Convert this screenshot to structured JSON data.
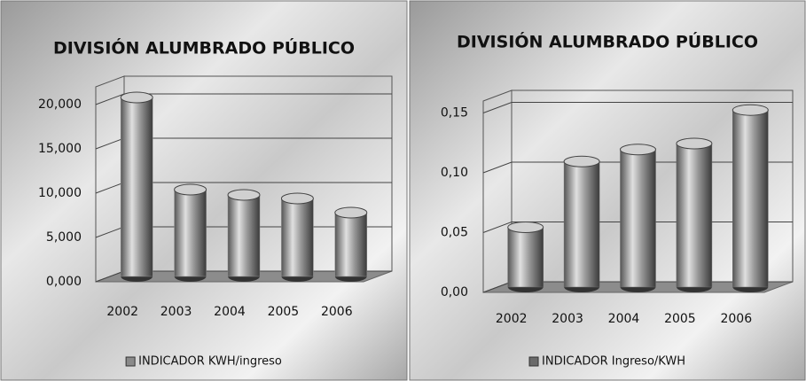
{
  "chart_data": [
    {
      "type": "bar",
      "title": "DIVISIÓN ALUMBRADO PÚBLICO",
      "categories": [
        "2002",
        "2003",
        "2004",
        "2005",
        "2006"
      ],
      "series": [
        {
          "name": "INDICADOR KWH/ingreso",
          "color": "#8a8a8a",
          "values": [
            20.2,
            9.8,
            9.2,
            8.8,
            7.2
          ]
        }
      ],
      "ylim": [
        0,
        22
      ],
      "yticks": [
        {
          "value": 0,
          "label": "0,000"
        },
        {
          "value": 5,
          "label": "5,000"
        },
        {
          "value": 10,
          "label": "10,000"
        },
        {
          "value": 15,
          "label": "15,000"
        },
        {
          "value": 20,
          "label": "20,000"
        }
      ],
      "grid": true,
      "legend": "bottom"
    },
    {
      "type": "bar",
      "title": "DIVISIÓN ALUMBRADO PÚBLICO",
      "categories": [
        "2002",
        "2003",
        "2004",
        "2005",
        "2006"
      ],
      "series": [
        {
          "name": "INDICADOR Ingreso/KWH",
          "color": "#6a6a6a",
          "values": [
            0.05,
            0.105,
            0.115,
            0.12,
            0.148
          ]
        }
      ],
      "ylim": [
        0,
        0.16
      ],
      "yticks": [
        {
          "value": 0,
          "label": "0,00"
        },
        {
          "value": 0.05,
          "label": "0,05"
        },
        {
          "value": 0.1,
          "label": "0,10"
        },
        {
          "value": 0.15,
          "label": "0,15"
        }
      ],
      "grid": true,
      "legend": "bottom"
    }
  ]
}
